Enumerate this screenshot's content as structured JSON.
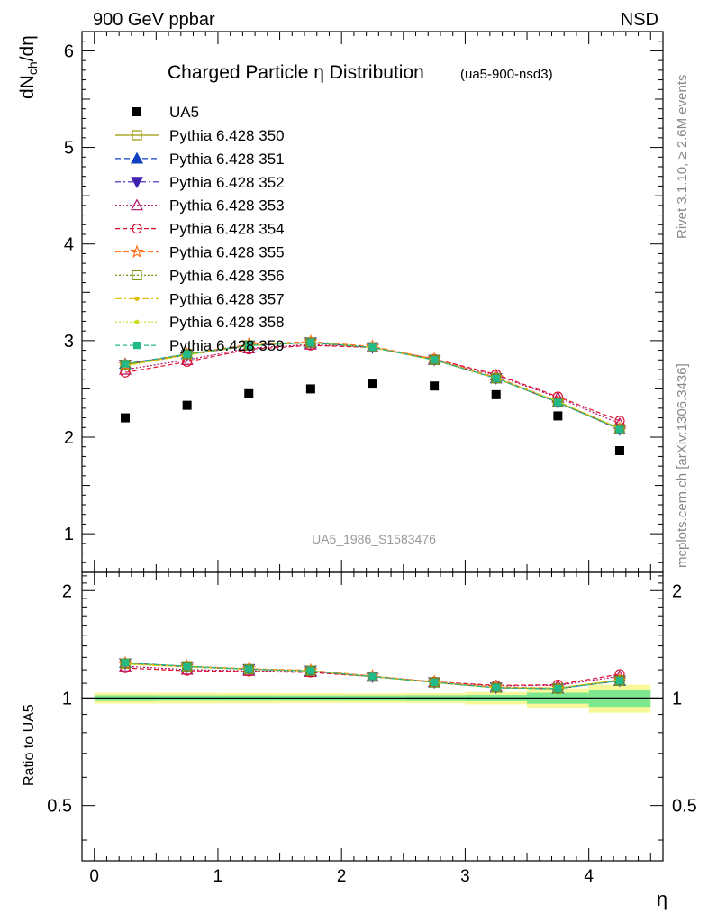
{
  "header": {
    "left": "900 GeV ppbar",
    "right": "NSD"
  },
  "side_labels": {
    "rivet": "Rivet 3.1.10, ≥ 2.6M events",
    "mcplots": "mcplots.cern.ch [arXiv:1306.3436]"
  },
  "chart_data": [
    {
      "type": "scatter",
      "title": "Charged Particle η Distribution",
      "subtitle": "(ua5-900-nsd3)",
      "ylabel": "dN_ch/dη",
      "watermark": "UA5_1986_S1583476",
      "xlim": [
        -0.1,
        4.6
      ],
      "ylim": [
        0.6,
        6.2
      ],
      "yticks": [
        1,
        2,
        3,
        4,
        5,
        6
      ],
      "yticklabels": [
        "1",
        "2",
        "3",
        "4",
        "5",
        "6"
      ],
      "x": [
        0.25,
        0.75,
        1.25,
        1.75,
        2.25,
        2.75,
        3.25,
        3.75,
        4.25
      ],
      "data": {
        "name": "UA5",
        "color": "#000000",
        "values": [
          2.2,
          2.33,
          2.45,
          2.5,
          2.55,
          2.53,
          2.44,
          2.22,
          1.86
        ]
      },
      "series": [
        {
          "name": "Pythia 6.428 350",
          "color": "#999900",
          "values": [
            2.75,
            2.86,
            2.95,
            2.98,
            2.93,
            2.8,
            2.61,
            2.36,
            2.09
          ]
        },
        {
          "name": "Pythia 6.428 351",
          "color": "#1040c0",
          "values": [
            2.76,
            2.86,
            2.95,
            2.98,
            2.93,
            2.8,
            2.61,
            2.36,
            2.08
          ]
        },
        {
          "name": "Pythia 6.428 352",
          "color": "#4020b0",
          "values": [
            2.75,
            2.85,
            2.95,
            2.98,
            2.93,
            2.8,
            2.61,
            2.36,
            2.08
          ]
        },
        {
          "name": "Pythia 6.428 353",
          "color": "#b0106a",
          "values": [
            2.7,
            2.8,
            2.92,
            2.96,
            2.93,
            2.81,
            2.64,
            2.41,
            2.14
          ]
        },
        {
          "name": "Pythia 6.428 354",
          "color": "#dd1030",
          "values": [
            2.67,
            2.78,
            2.91,
            2.95,
            2.93,
            2.81,
            2.65,
            2.42,
            2.17
          ]
        },
        {
          "name": "Pythia 6.428 355",
          "color": "#ff7722",
          "values": [
            2.75,
            2.86,
            2.96,
            2.99,
            2.94,
            2.81,
            2.62,
            2.37,
            2.09
          ]
        },
        {
          "name": "Pythia 6.428 356",
          "color": "#779911",
          "values": [
            2.75,
            2.86,
            2.95,
            2.98,
            2.93,
            2.8,
            2.61,
            2.36,
            2.08
          ]
        },
        {
          "name": "Pythia 6.428 357",
          "color": "#ddbb00",
          "values": [
            2.74,
            2.85,
            2.95,
            2.98,
            2.93,
            2.8,
            2.61,
            2.37,
            2.09
          ]
        },
        {
          "name": "Pythia 6.428 358",
          "color": "#ccdd22",
          "values": [
            2.74,
            2.85,
            2.95,
            2.98,
            2.93,
            2.8,
            2.61,
            2.37,
            2.09
          ]
        },
        {
          "name": "Pythia 6.428 359",
          "color": "#22bb88",
          "values": [
            2.76,
            2.86,
            2.95,
            2.98,
            2.93,
            2.8,
            2.61,
            2.36,
            2.08
          ]
        }
      ]
    },
    {
      "type": "scatter",
      "ylabel": "Ratio to UA5",
      "xlabel": "η",
      "xlim": [
        -0.1,
        4.6
      ],
      "ylim": [
        0.35,
        2.25
      ],
      "yticks": [
        0.5,
        1,
        2
      ],
      "yticklabels": [
        "0.5",
        "1",
        "2"
      ],
      "xticks": [
        0,
        1,
        2,
        3,
        4
      ],
      "xticklabels": [
        "0",
        "1",
        "2",
        "3",
        "4"
      ],
      "band_inner": [
        0.018,
        0.017,
        0.017,
        0.017,
        0.017,
        0.018,
        0.02,
        0.035,
        0.055
      ],
      "band_outer": [
        0.035,
        0.034,
        0.033,
        0.032,
        0.031,
        0.032,
        0.04,
        0.065,
        0.09
      ]
    }
  ]
}
